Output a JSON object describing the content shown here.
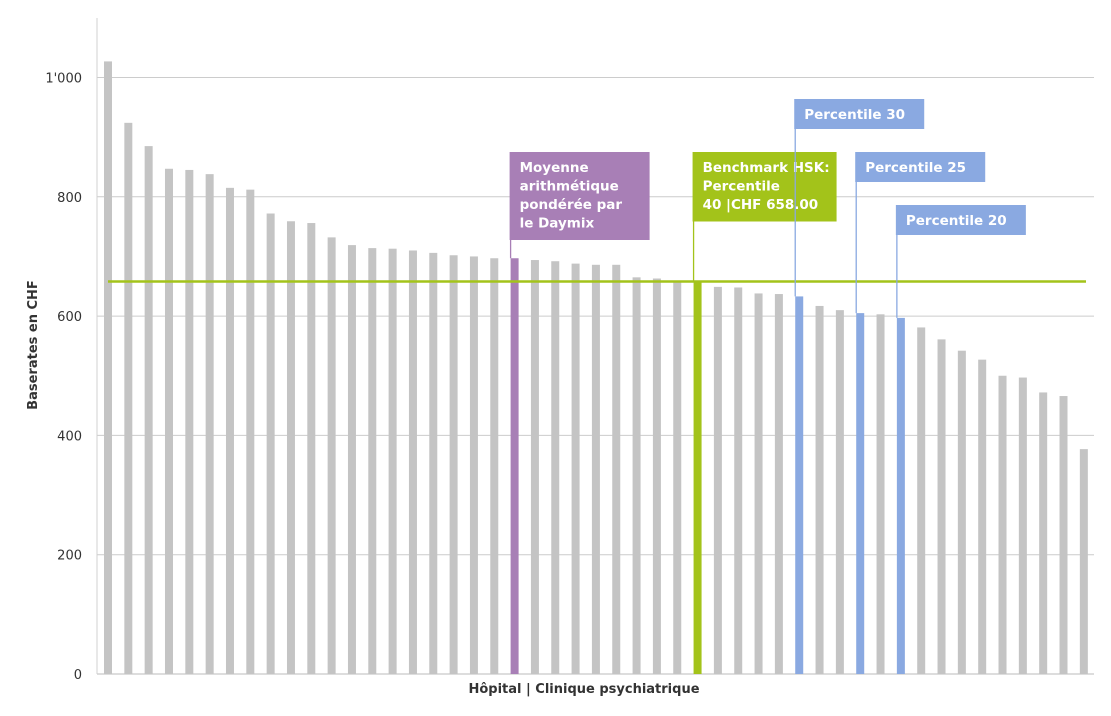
{
  "chart_data": {
    "type": "bar",
    "title": "",
    "xlabel": "Hôpital | Clinique psychiatrique",
    "ylabel": "Baserates en CHF",
    "ylim": [
      0,
      1100
    ],
    "yticks": [
      {
        "value": 0,
        "label": "0"
      },
      {
        "value": 200,
        "label": "200"
      },
      {
        "value": 400,
        "label": "400"
      },
      {
        "value": 600,
        "label": "600"
      },
      {
        "value": 800,
        "label": "800"
      },
      {
        "value": 1000,
        "label": "1'000"
      }
    ],
    "grid": true,
    "bar_color": "#c4c4c4",
    "values": [
      1027,
      924,
      885,
      847,
      845,
      838,
      815,
      812,
      772,
      759,
      756,
      732,
      719,
      714,
      713,
      710,
      706,
      702,
      700,
      697,
      697,
      694,
      692,
      688,
      686,
      686,
      665,
      663,
      659,
      658,
      649,
      648,
      638,
      637,
      633,
      617,
      610,
      605,
      603,
      597,
      581,
      561,
      542,
      527,
      500,
      497,
      472,
      466,
      377
    ],
    "benchmark_line": {
      "value": 658,
      "color": "#a3c31a"
    },
    "highlights": [
      {
        "index": 20,
        "color": "#a87fb6",
        "label_lines": [
          "Moyenne",
          "arithmétique",
          "pondérée par",
          "le Daymix"
        ]
      },
      {
        "index": 29,
        "color": "#a3c31a",
        "label_lines": [
          "Benchmark HSK:",
          "Percentile",
          "40 |CHF 658.00"
        ]
      },
      {
        "index": 34,
        "color": "#8aa9e1",
        "label_lines": [
          "Percentile 30"
        ]
      },
      {
        "index": 37,
        "color": "#8aa9e1",
        "label_lines": [
          "Percentile 25"
        ]
      },
      {
        "index": 39,
        "color": "#8aa9e1",
        "label_lines": [
          "Percentile 20"
        ]
      }
    ]
  }
}
